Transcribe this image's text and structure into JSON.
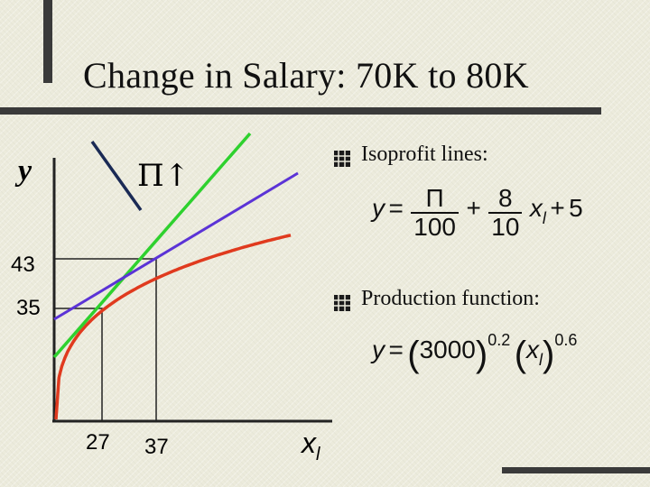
{
  "slide": {
    "title": "Change in Salary: 70K to 80K"
  },
  "graph": {
    "y_axis_label": "y",
    "x_axis_label": "x",
    "x_axis_label_subscript": "l",
    "profit_symbol": "Π↑",
    "y_tick_labels": [
      "43",
      "35"
    ],
    "x_tick_labels": [
      "27",
      "37"
    ],
    "colors": {
      "production_function": "#e03a1e",
      "isoprofit_new": "#2ed12e",
      "isoprofit_old": "#5b33d6",
      "axes": "#222222"
    }
  },
  "bullets": [
    {
      "label": "Isoprofit lines:"
    },
    {
      "label": "Production function:"
    }
  ],
  "isoprofit_equation": {
    "lhs": "y",
    "equals": "=",
    "frac1_num": "Π",
    "frac1_den": "100",
    "plus1": "+",
    "frac2_num": "8",
    "frac2_den": "10",
    "var": "x",
    "var_sub": "l",
    "plus2": "+",
    "constant": "5"
  },
  "production_equation": {
    "lhs": "y",
    "equals": "=",
    "base": "3000",
    "base_exp": "0.2",
    "var": "x",
    "var_sub": "l",
    "var_exp": "0.6"
  }
}
